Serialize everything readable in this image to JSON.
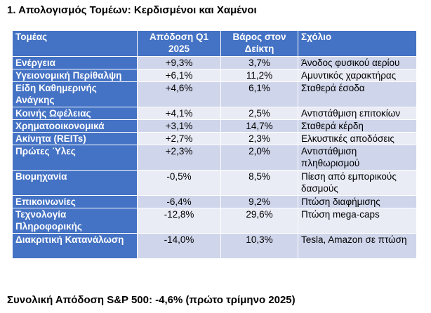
{
  "title": "1. Απολογισμός Τομέων: Κερδισμένοι και Χαμένοι",
  "table": {
    "headers": [
      "Τομέας",
      "Απόδοση Q1 2025",
      "Βάρος στον Δείκτη",
      "Σχόλιο"
    ],
    "rows": [
      {
        "sector": "Ενέργεια",
        "return": "+9,3%",
        "weight": "3,7%",
        "comment": "Άνοδος φυσικού αερίου"
      },
      {
        "sector": "Υγειονομική Περίθαλψη",
        "return": "+6,1%",
        "weight": "11,2%",
        "comment": "Αμυντικός χαρακτήρας"
      },
      {
        "sector": "Είδη Καθημερινής Ανάγκης",
        "return": "+4,6%",
        "weight": "6,1%",
        "comment": "Σταθερά έσοδα"
      },
      {
        "sector": "Κοινής Ωφέλειας",
        "return": "+4,1%",
        "weight": "2,5%",
        "comment": "Αντιστάθμιση επιτοκίων"
      },
      {
        "sector": "Χρηματοοικονομικά",
        "return": "+3,1%",
        "weight": "14,7%",
        "comment": "Σταθερά κέρδη"
      },
      {
        "sector": "Ακίνητα (REITs)",
        "return": "+2,7%",
        "weight": "2,3%",
        "comment": "Ελκυστικές αποδόσεις"
      },
      {
        "sector": "Πρώτες Ύλες",
        "return": "+2,3%",
        "weight": "2,0%",
        "comment": "Αντιστάθμιση πληθωρισμού"
      },
      {
        "sector": "Βιομηχανία",
        "return": "-0,5%",
        "weight": "8,5%",
        "comment": "Πίεση από εμπορικούς δασμούς"
      },
      {
        "sector": "Επικοινωνίες",
        "return": "-6,4%",
        "weight": "9,2%",
        "comment": "Πτώση διαφήμισης"
      },
      {
        "sector": "Τεχνολογία Πληροφορικής",
        "return": "-12,8%",
        "weight": "29,6%",
        "comment": "Πτώση mega-caps"
      },
      {
        "sector": "Διακριτική Κατανάλωση",
        "return": "-14,0%",
        "weight": "10,3%",
        "comment": "Tesla, Amazon σε πτώση"
      }
    ]
  },
  "footer": "Συνολική Απόδοση S&P 500: -4,6% (πρώτο τρίμηνο 2025)"
}
